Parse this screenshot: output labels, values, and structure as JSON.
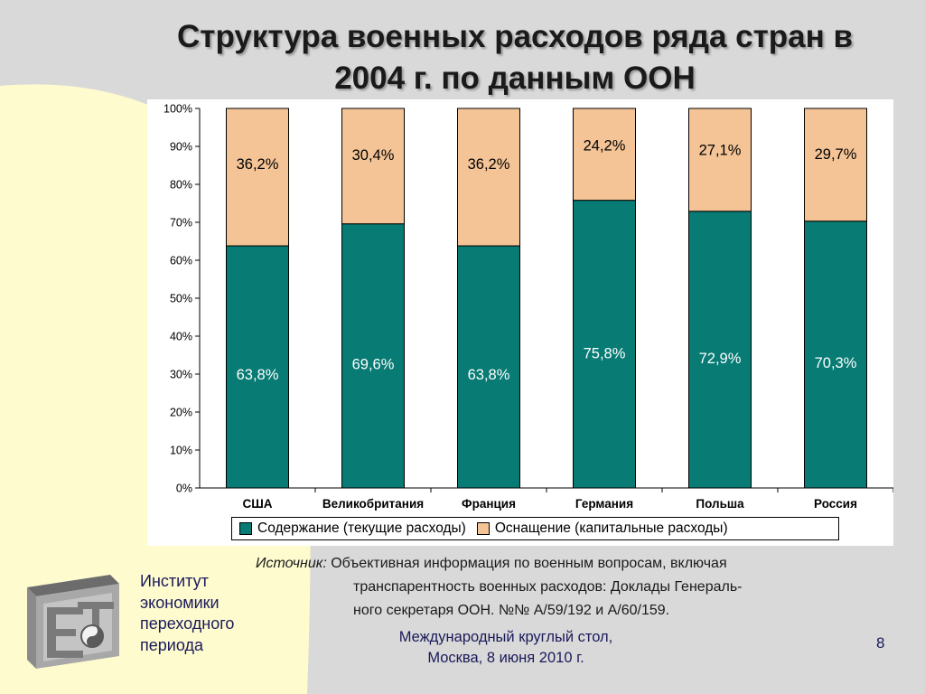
{
  "slide": {
    "title_line1": "Структура военных расходов ряда стран в",
    "title_line2": "2004 г. по данным ООН",
    "source_label": "Источник:",
    "source_line1": "Объективная информация по военным вопросам, включая",
    "source_line2": "транспарентность военных расходов: Доклады Генераль-",
    "source_line3": "ного секретаря ООН. №№ A/59/192 и A/60/159.",
    "institute_lines": [
      "Институт",
      "экономики",
      "переходного",
      "периода"
    ],
    "roundtable_line1": "Международный круглый стол,",
    "roundtable_line2": "Москва, 8 июня 2010 г.",
    "page_number": "8"
  },
  "colors": {
    "maintenance": "#077b74",
    "equipment": "#f4c497",
    "background": "#d9d9d9",
    "accent_yellow": "#fefbcf"
  },
  "chart_data": {
    "type": "bar",
    "stacked": true,
    "categories": [
      "США",
      "Великобритания",
      "Франция",
      "Германия",
      "Польша",
      "Россия"
    ],
    "series": [
      {
        "name": "Содержание (текущие расходы)",
        "values": [
          63.8,
          69.6,
          63.8,
          75.8,
          72.9,
          70.3
        ],
        "labels": [
          "63,8%",
          "69,6%",
          "63,8%",
          "75,8%",
          "72,9%",
          "70,3%"
        ]
      },
      {
        "name": "Оснащение (капитальные расходы)",
        "values": [
          36.2,
          30.4,
          36.2,
          24.2,
          27.1,
          29.7
        ],
        "labels": [
          "36,2%",
          "30,4%",
          "36,2%",
          "24,2%",
          "27,1%",
          "29,7%"
        ]
      }
    ],
    "y_ticks": [
      "0%",
      "10%",
      "20%",
      "30%",
      "40%",
      "50%",
      "60%",
      "70%",
      "80%",
      "90%",
      "100%"
    ],
    "ylim": [
      0,
      100
    ],
    "grid": false,
    "legend_position": "bottom"
  }
}
